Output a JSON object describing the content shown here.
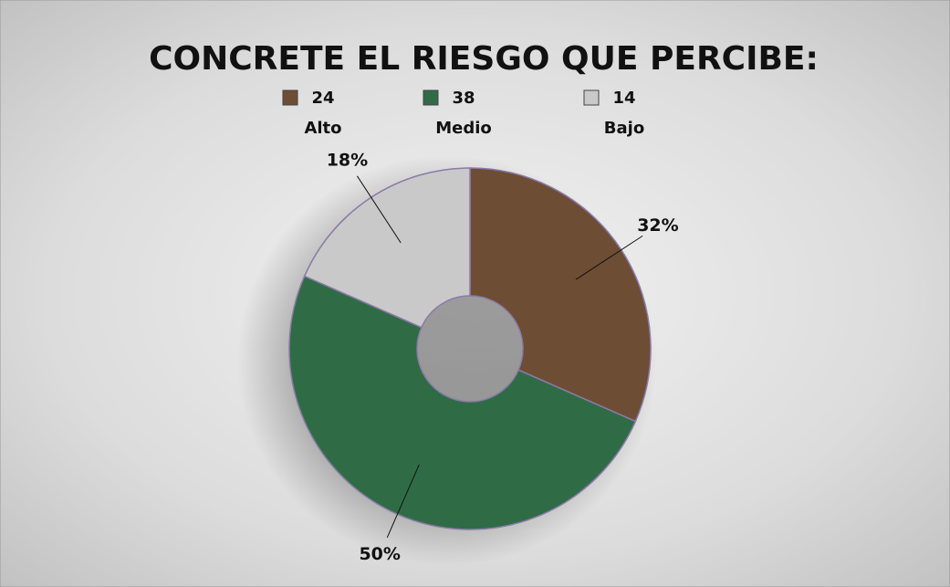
{
  "chart_data": {
    "type": "pie",
    "title": "CONCRETE EL RIESGO QUE PERCIBE:",
    "categories": [
      "Alto",
      "Medio",
      "Bajo"
    ],
    "values": [
      24,
      38,
      14
    ],
    "value_labels": [
      "32%",
      "50%",
      "18%"
    ],
    "colors": [
      "#6e4d35",
      "#2f6c46",
      "#c9c9c9"
    ],
    "donut": true,
    "legend": "top"
  }
}
